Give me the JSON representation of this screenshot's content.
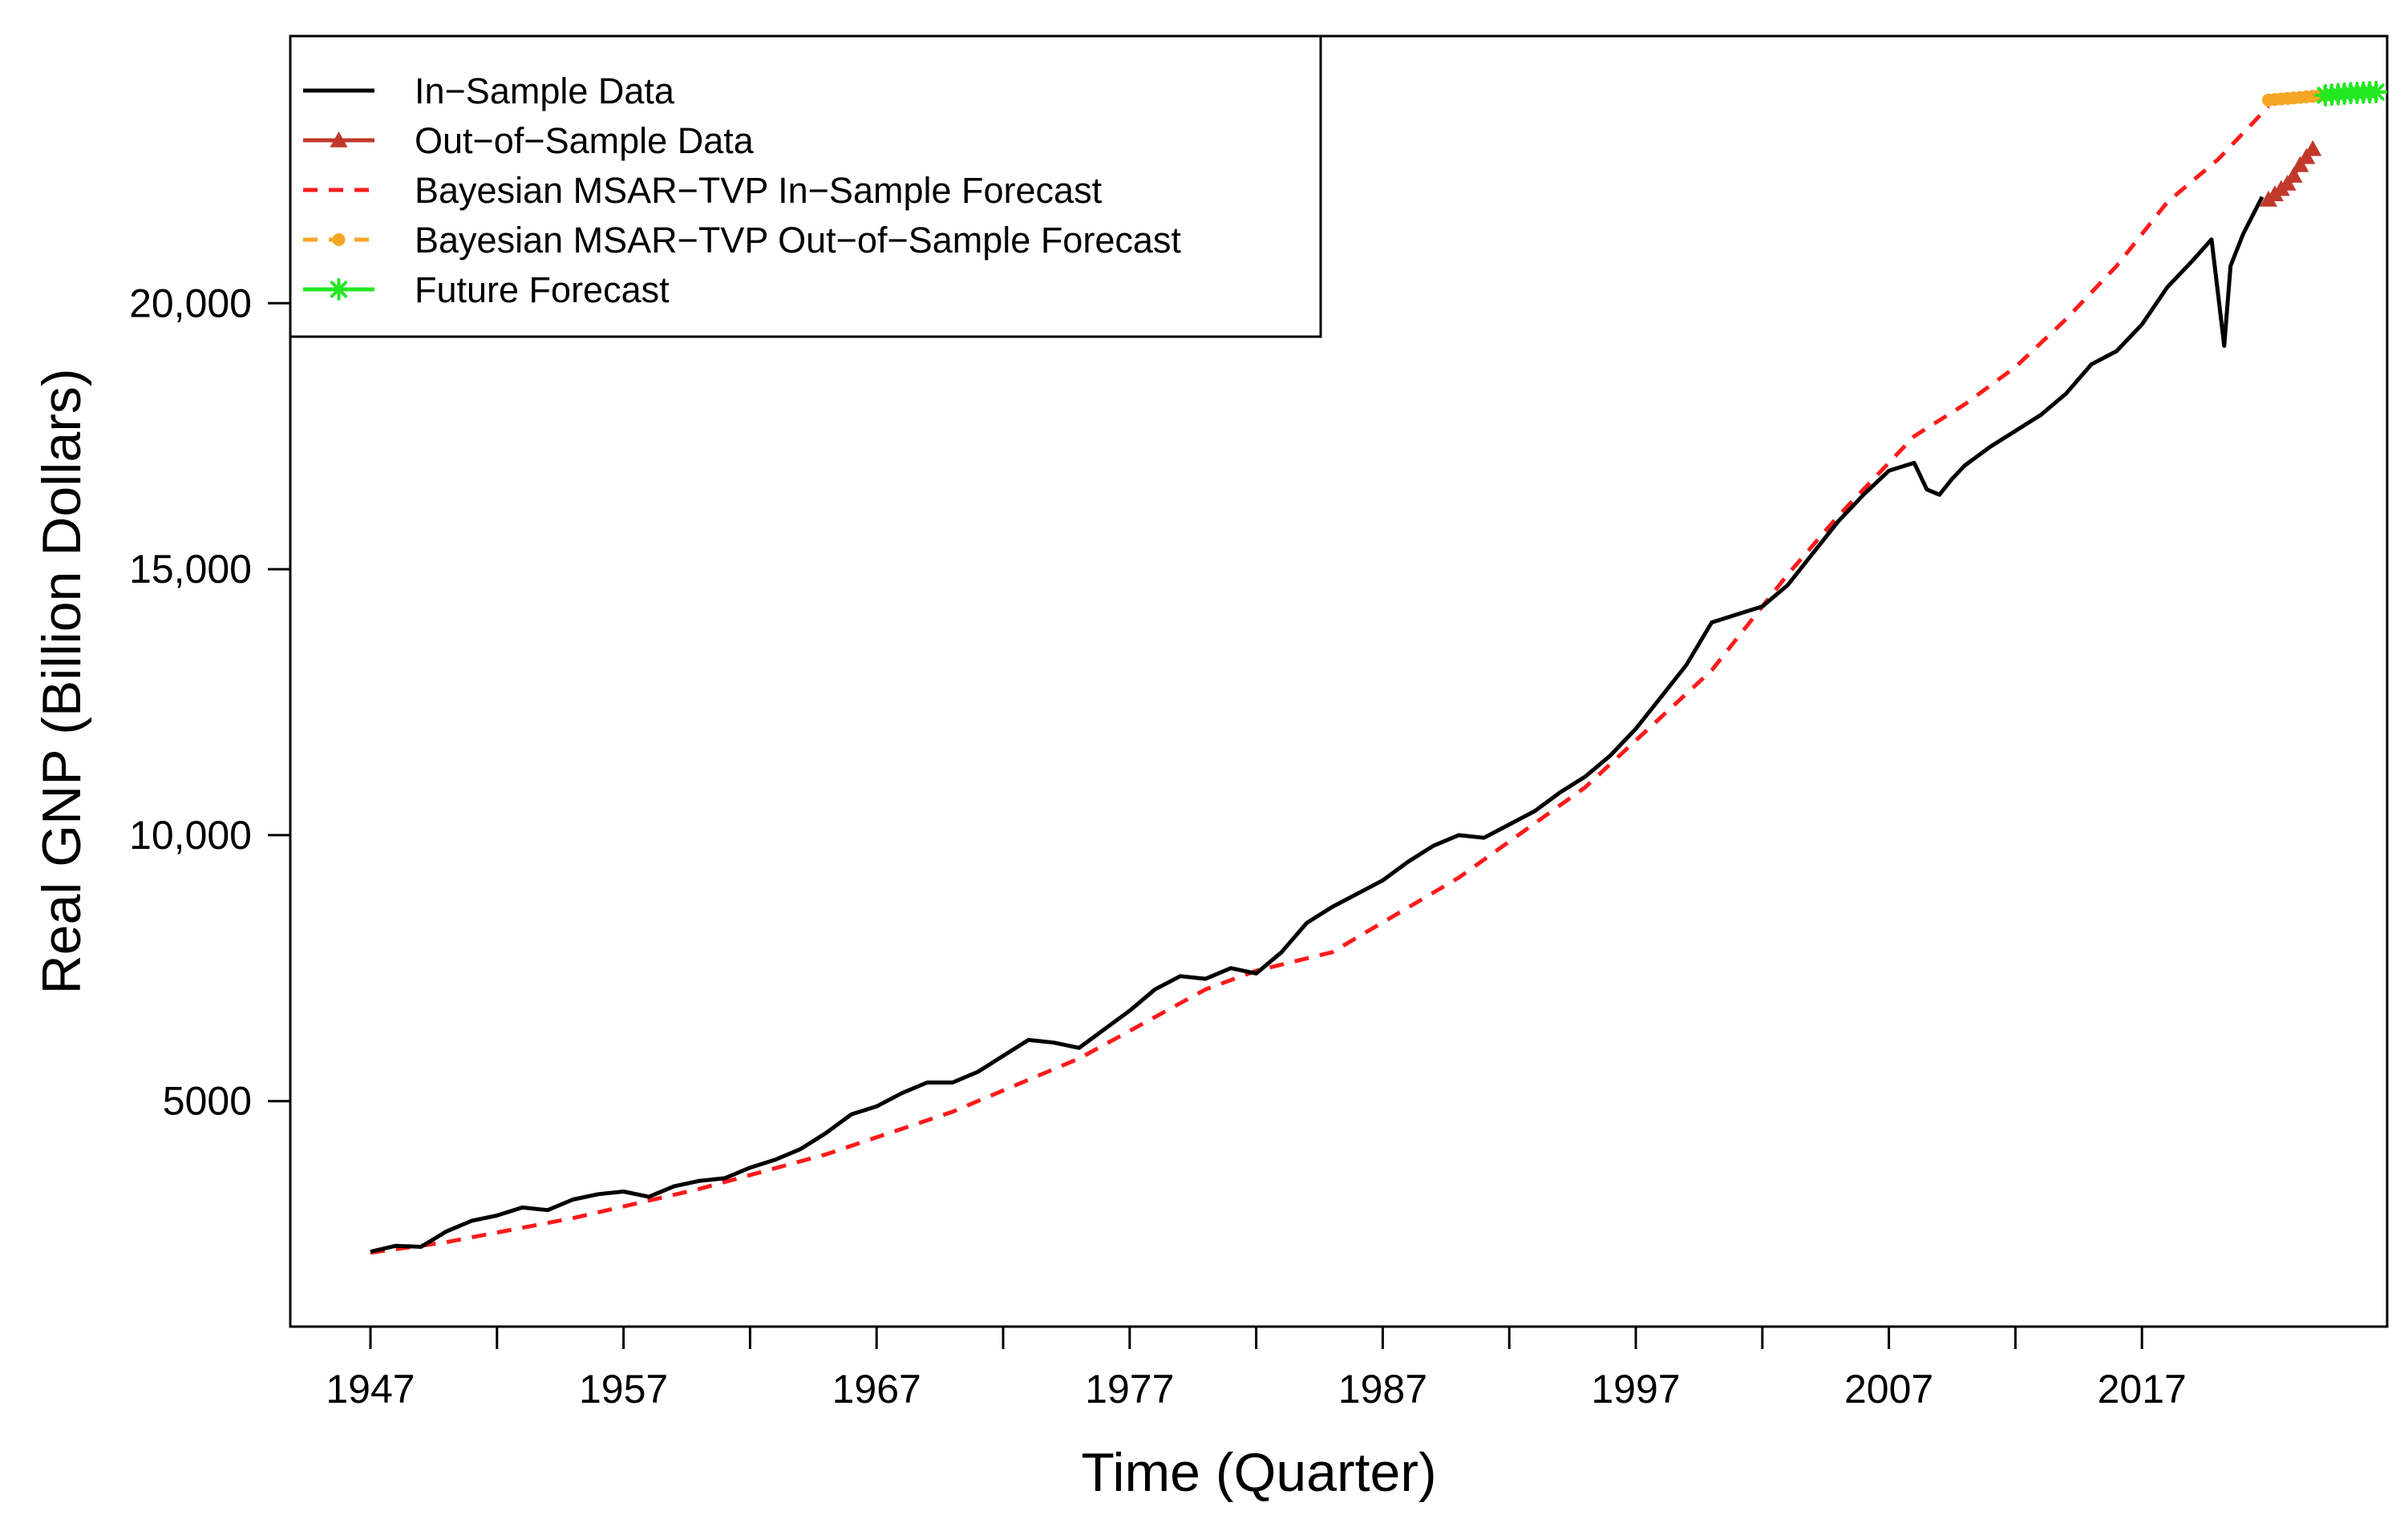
{
  "chart_data": {
    "type": "line",
    "title": "",
    "xlabel": "Time (Quarter)",
    "ylabel": "Real GNP (Billion Dollars)",
    "xlim": [
      1944,
      2025
    ],
    "ylim": [
      500,
      24800
    ],
    "x_ticks": [
      1947,
      1952,
      1957,
      1962,
      1967,
      1972,
      1977,
      1982,
      1987,
      1992,
      1997,
      2002,
      2007,
      2012,
      2017
    ],
    "x_tick_labels": [
      "1947",
      "",
      "1957",
      "",
      "1967",
      "",
      "1977",
      "",
      "1987",
      "",
      "1997",
      "",
      "2007",
      "",
      "2017"
    ],
    "y_ticks": [
      5000,
      10000,
      15000,
      20000
    ],
    "y_tick_labels": [
      "5000",
      "10,000",
      "15,000",
      "20,000"
    ],
    "legend_position": "top-left",
    "legend": [
      {
        "label": "In−Sample Data",
        "color": "#000000",
        "line": "solid",
        "marker": "none"
      },
      {
        "label": "Out−of−Sample Data",
        "color": "#c0392b",
        "line": "solid",
        "marker": "triangle"
      },
      {
        "label": "Bayesian MSAR−TVP In−Sample Forecast",
        "color": "#ff1a1a",
        "line": "dashed",
        "marker": "none"
      },
      {
        "label": "Bayesian MSAR−TVP Out−of−Sample Forecast",
        "color": "#f5a623",
        "line": "dashed",
        "marker": "circle"
      },
      {
        "label": "Future Forecast",
        "color": "#22e822",
        "line": "solid",
        "marker": "star"
      }
    ],
    "series": [
      {
        "name": "In−Sample Data",
        "color": "#000000",
        "style": "solid",
        "x": [
          1947,
          1948,
          1949,
          1950,
          1951,
          1952,
          1953,
          1954,
          1955,
          1956,
          1957,
          1958,
          1959,
          1960,
          1961,
          1962,
          1963,
          1964,
          1965,
          1966,
          1967,
          1968,
          1969,
          1970,
          1971,
          1972,
          1973,
          1974,
          1975,
          1976,
          1977,
          1978,
          1979,
          1980,
          1981,
          1982,
          1983,
          1984,
          1985,
          1986,
          1987,
          1988,
          1989,
          1990,
          1991,
          1992,
          1993,
          1994,
          1995,
          1996,
          1997,
          1998,
          1999,
          2000,
          2001,
          2002,
          2003,
          2004,
          2005,
          2006,
          2007,
          2008,
          2008.5,
          2009,
          2009.5,
          2010,
          2011,
          2012,
          2013,
          2014,
          2015,
          2016,
          2017,
          2018,
          2019,
          2019.75,
          2020.25,
          2020.5,
          2021,
          2021.75
        ],
        "values": [
          2170,
          2280,
          2260,
          2550,
          2750,
          2850,
          3000,
          2950,
          3150,
          3250,
          3300,
          3200,
          3400,
          3500,
          3550,
          3750,
          3900,
          4100,
          4400,
          4750,
          4900,
          5150,
          5350,
          5350,
          5550,
          5850,
          6150,
          6100,
          6000,
          6350,
          6700,
          7100,
          7350,
          7300,
          7500,
          7400,
          7800,
          8350,
          8650,
          8900,
          9150,
          9500,
          9800,
          10000,
          9950,
          10200,
          10450,
          10800,
          11100,
          11500,
          12000,
          12600,
          13200,
          14000,
          14150,
          14300,
          14700,
          15300,
          15900,
          16400,
          16850,
          17000,
          16500,
          16400,
          16700,
          16950,
          17300,
          17600,
          17900,
          18300,
          18850,
          19100,
          19600,
          20300,
          20800,
          21200,
          19200,
          20700,
          21300,
          22000
        ]
      },
      {
        "name": "Bayesian MSAR−TVP In−Sample Forecast",
        "color": "#ff1a1a",
        "style": "dashed",
        "x": [
          1947,
          1950,
          1955,
          1960,
          1965,
          1970,
          1975,
          1980,
          1982,
          1985,
          1990,
          1995,
          2000,
          2003,
          2005,
          2007,
          2008,
          2010,
          2012,
          2014,
          2016,
          2018,
          2020,
          2022
        ],
        "values": [
          2150,
          2350,
          2800,
          3350,
          4000,
          4800,
          5800,
          7100,
          7450,
          7800,
          9200,
          10900,
          13100,
          14900,
          16000,
          17000,
          17500,
          18100,
          18800,
          19700,
          20700,
          21900,
          22700,
          23700
        ]
      },
      {
        "name": "Out−of−Sample Data",
        "color": "#c0392b",
        "style": "solid",
        "marker": "triangle",
        "x": [
          2022.0,
          2022.25,
          2022.5,
          2022.75,
          2023.0,
          2023.25,
          2023.5,
          2023.75
        ],
        "values": [
          21950,
          22050,
          22150,
          22250,
          22400,
          22600,
          22750,
          22900
        ]
      },
      {
        "name": "Bayesian MSAR−TVP Out−of−Sample Forecast",
        "color": "#f5a623",
        "style": "dashed",
        "marker": "circle",
        "x": [
          2022.0,
          2022.25,
          2022.5,
          2022.75,
          2023.0,
          2023.25,
          2023.5,
          2023.75,
          2024.0,
          2024.25
        ],
        "values": [
          23820,
          23830,
          23840,
          23850,
          23860,
          23870,
          23880,
          23890,
          23900,
          23910
        ]
      },
      {
        "name": "Future Forecast",
        "color": "#22e822",
        "style": "solid",
        "marker": "star",
        "x": [
          2024.25,
          2024.5,
          2024.75,
          2025.0,
          2025.25,
          2025.5,
          2025.75,
          2026.0,
          2026.25
        ],
        "values": [
          23910,
          23920,
          23930,
          23940,
          23950,
          23955,
          23960,
          23965,
          23970
        ]
      }
    ]
  }
}
